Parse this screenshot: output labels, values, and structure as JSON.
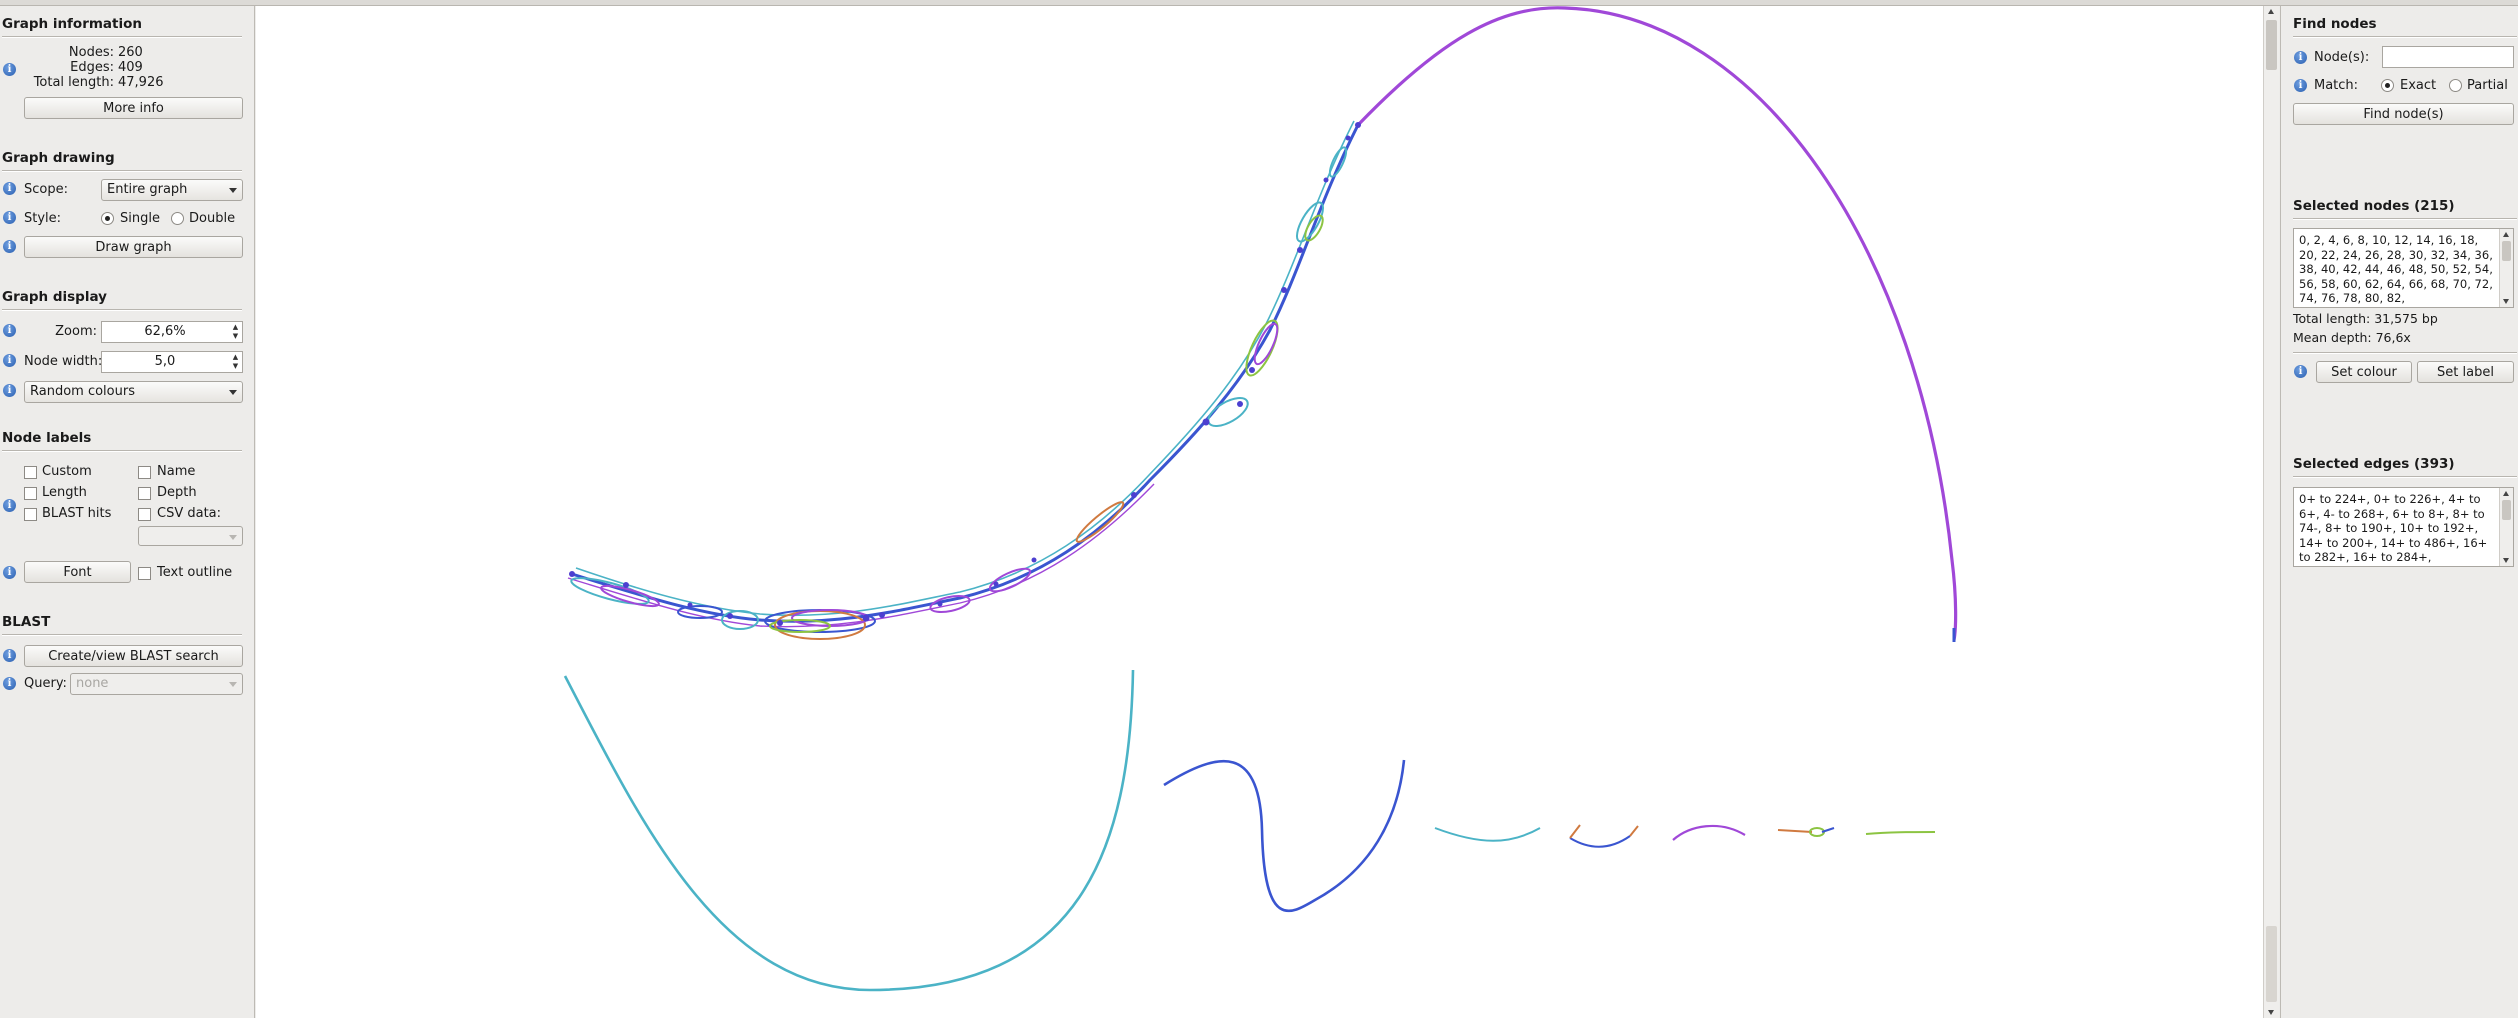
{
  "graph_info": {
    "title": "Graph information",
    "nodes_label": "Nodes:",
    "nodes_value": "260",
    "edges_label": "Edges:",
    "edges_value": "409",
    "length_label": "Total length:",
    "length_value": "47,926",
    "more_info": "More info"
  },
  "graph_drawing": {
    "title": "Graph drawing",
    "scope_label": "Scope:",
    "scope_value": "Entire graph",
    "style_label": "Style:",
    "style_single": "Single",
    "style_double": "Double",
    "style_selected": "Single",
    "draw_button": "Draw graph"
  },
  "graph_display": {
    "title": "Graph display",
    "zoom_label": "Zoom:",
    "zoom_value": "62,6%",
    "node_width_label": "Node width:",
    "node_width_value": "5,0",
    "colour_scheme": "Random colours"
  },
  "node_labels": {
    "title": "Node labels",
    "custom": "Custom",
    "name": "Name",
    "length": "Length",
    "depth": "Depth",
    "blast_hits": "BLAST hits",
    "csv_data": "CSV data:",
    "font_button": "Font",
    "text_outline": "Text outline"
  },
  "blast": {
    "title": "BLAST",
    "search_button": "Create/view BLAST search",
    "query_label": "Query:",
    "query_value": "none"
  },
  "find_nodes": {
    "title": "Find nodes",
    "nodes_label": "Node(s):",
    "nodes_value": "",
    "match_label": "Match:",
    "exact": "Exact",
    "partial": "Partial",
    "match_selected": "Exact",
    "find_button": "Find node(s)"
  },
  "selected_nodes": {
    "title": "Selected nodes (215)",
    "list": "0, 2, 4, 6, 8, 10, 12, 14, 16, 18, 20, 22, 24, 26, 28, 30, 32, 34, 36, 38, 40, 42, 44, 46, 48, 50, 52, 54, 56, 58, 60, 62, 64, 66, 68, 70, 72, 74, 76, 78, 80, 82,",
    "total_length": "Total length: 31,575 bp",
    "mean_depth": "Mean depth: 76,6x",
    "set_colour": "Set colour",
    "set_label": "Set label"
  },
  "selected_edges": {
    "title": "Selected edges (393)",
    "list": "0+ to 224+, 0+ to 226+, 4+ to 6+, 4- to 268+, 6+ to 8+, 8+ to 74-, 8+ to 190+, 10+ to 192+, 14+ to 200+, 14+ to 486+, 16+ to 282+, 16+ to 284+,"
  },
  "colors": {
    "purple_edge": "#a048d8",
    "blue_edge": "#3a55d0",
    "teal_edge": "#4bb3c6",
    "green_edge": "#8cc442",
    "orange_edge": "#d07a40",
    "info_icon": "#2a5fb0"
  }
}
